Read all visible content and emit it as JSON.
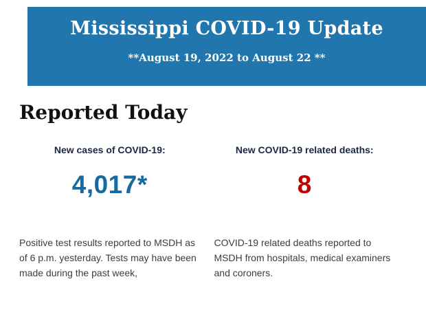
{
  "banner": {
    "title": "Mississippi COVID-19 Update",
    "subtitle": "**August 19, 2022 to August 22 **",
    "bg_color": "#2177ad",
    "text_color": "#ffffff"
  },
  "section": {
    "heading": "Reported Today"
  },
  "stats": [
    {
      "label": "New cases of COVID-19:",
      "value": "4,017*",
      "value_color": "#17699f",
      "value_style": "color:#17699f",
      "description": "Positive test results reported to MSDH as of 6 p.m. yesterday. Tests may have been made during the past week,"
    },
    {
      "label": "New COVID-19 related deaths:",
      "value": "8",
      "value_color": "#c00000",
      "value_style": "color:#c00000",
      "description": "COVID-19 related deaths reported to MSDH from hospitals, medical examiners and coroners."
    }
  ]
}
